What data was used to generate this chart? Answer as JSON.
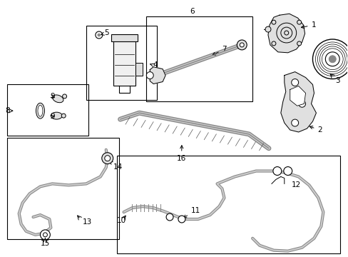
{
  "bg": "#ffffff",
  "lc": "#000000",
  "fig_width": 4.89,
  "fig_height": 3.6,
  "dpi": 100,
  "boxes": {
    "b89": [
      8,
      118,
      115,
      72
    ],
    "b45": [
      120,
      35,
      100,
      105
    ],
    "b67": [
      205,
      22,
      150,
      120
    ],
    "b1314": [
      8,
      193,
      158,
      143
    ],
    "b1012": [
      163,
      218,
      316,
      138
    ]
  }
}
